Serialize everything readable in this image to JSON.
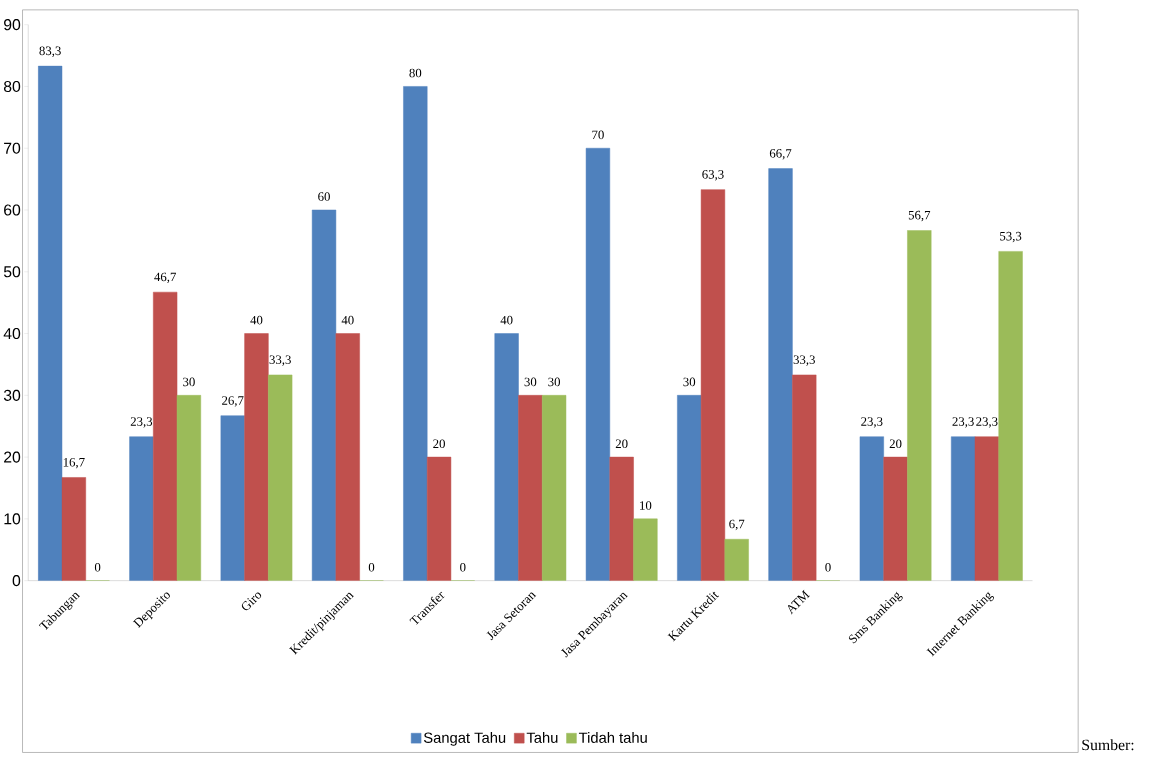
{
  "chart_data": {
    "type": "bar",
    "categories": [
      "Tabungan",
      "Deposito",
      "Giro",
      "Kredit/pinjaman",
      "Transfer",
      "Jasa Setoran",
      "Jasa Pembayaran",
      "Kartu Kredit",
      "ATM",
      "Sms Banking",
      "Internet Banking"
    ],
    "series": [
      {
        "name": "Sangat Tahu",
        "color": "#4f81bd",
        "values": [
          83.3,
          23.3,
          26.7,
          60,
          80,
          40,
          70,
          30,
          66.7,
          23.3,
          23.3
        ],
        "value_labels": [
          "83,3",
          "23,3",
          "26,7",
          "60",
          "80",
          "40",
          "70",
          "30",
          "66,7",
          "23,3",
          "23,3"
        ]
      },
      {
        "name": "Tahu",
        "color": "#c0504d",
        "values": [
          16.7,
          46.7,
          40,
          40,
          20,
          30,
          20,
          63.3,
          33.3,
          20,
          23.3
        ],
        "value_labels": [
          "16,7",
          "46,7",
          "40",
          "40",
          "20",
          "30",
          "20",
          "63,3",
          "33,3",
          "20",
          "23,3"
        ]
      },
      {
        "name": "Tidah tahu",
        "color": "#9bbb59",
        "values": [
          0,
          30,
          33.3,
          0,
          0,
          30,
          10,
          6.7,
          0,
          56.7,
          53.3
        ],
        "value_labels": [
          "0",
          "30",
          "33,3",
          "0",
          "0",
          "30",
          "10",
          "6,7",
          "0",
          "56,7",
          "53,3"
        ]
      }
    ],
    "ylim": [
      0,
      90
    ],
    "yticks": [
      0,
      10,
      20,
      30,
      40,
      50,
      60,
      70,
      80,
      90
    ],
    "grid": false,
    "legend": "bottom",
    "annotations": [
      "Sumber:"
    ]
  }
}
